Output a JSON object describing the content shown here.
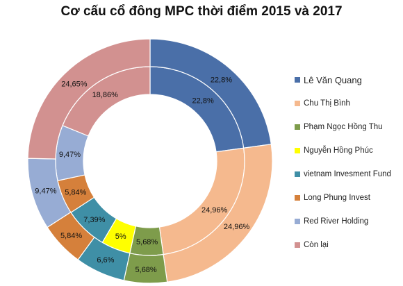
{
  "chart_data": {
    "type": "pie",
    "title": "Cơ cấu cổ đông MPC thời điểm 2015 và 2017",
    "categories": [
      "Lê Văn Quang",
      "Chu Thị Bình",
      "Phạm Ngọc Hồng Thu",
      "Nguyễn  Hồng Phúc",
      "vietnam Invesment Fund",
      "Long Phung Invest",
      "Red River Holding",
      "Còn lại"
    ],
    "colors": [
      "#4A6FA8",
      "#F5B98E",
      "#7E9C4B",
      "#FFFF00",
      "#3F8FA6",
      "#D5803B",
      "#97ACD4",
      "#D29190"
    ],
    "series": [
      {
        "values": [
          22.8,
          24.96,
          5.68,
          5,
          7.39,
          5.84,
          9.47,
          18.86
        ],
        "labels": [
          "22,8%",
          "24,96%",
          "5,68%",
          "5%",
          "7,39%",
          "5,84%",
          "9,47%",
          "18,86%"
        ]
      },
      {
        "values": [
          22.8,
          24.96,
          5.68,
          0,
          6.6,
          5.84,
          9.47,
          24.65
        ],
        "labels": [
          "22,8%",
          "24,96%",
          "5,68%",
          "",
          "6,6%",
          "5,84%",
          "9,47%",
          "24,65%"
        ]
      }
    ],
    "legend_position": "right"
  }
}
